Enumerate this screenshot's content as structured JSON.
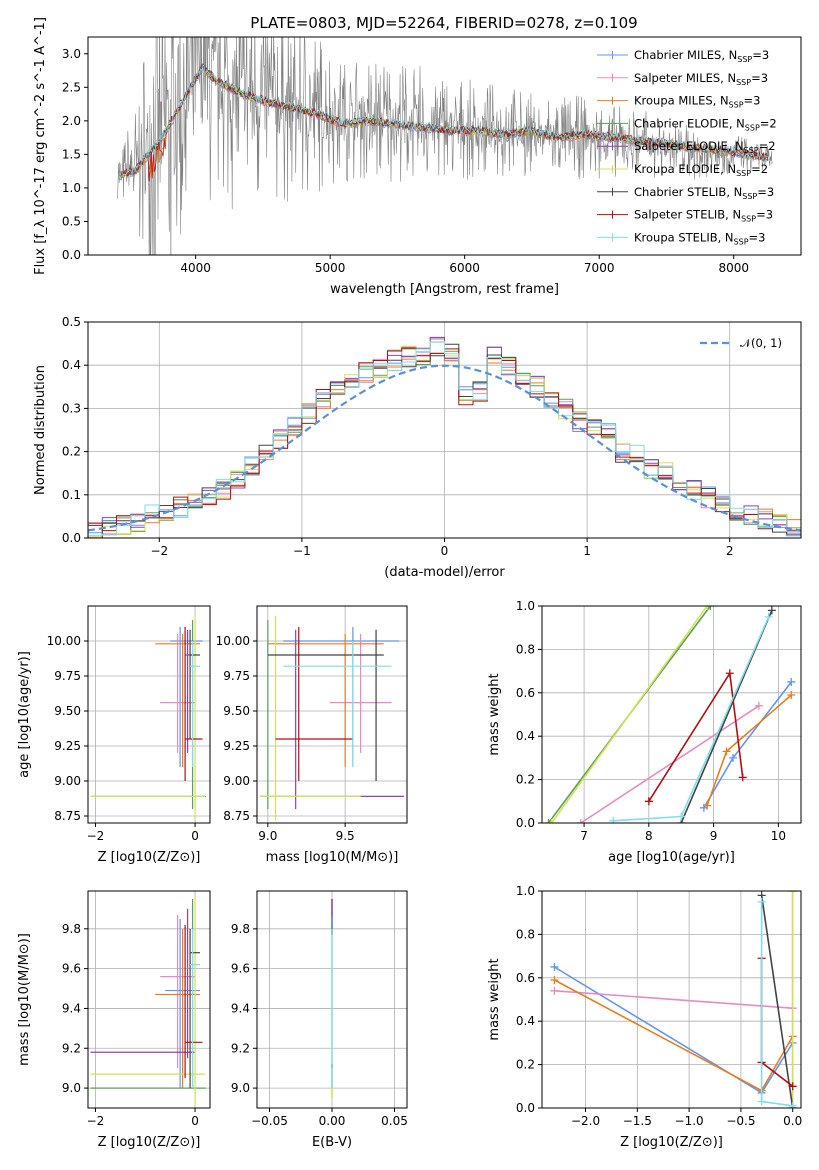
{
  "title": "PLATE=0803, MJD=52264, FIBERID=0278, z=0.109",
  "colors": {
    "Chabrier MILES": "#6495ed",
    "Salpeter MILES": "#e78ac3",
    "Kroupa MILES": "#e67e22",
    "Chabrier ELODIE": "#5aa05a",
    "Salpeter ELODIE": "#8e44ad",
    "Kroupa ELODIE": "#d4e157",
    "Chabrier STELIB": "#444444",
    "Salpeter STELIB": "#b01010",
    "Kroupa STELIB": "#80deea"
  },
  "chart_data": [
    {
      "type": "line",
      "title": "PLATE=0803, MJD=52264, FIBERID=0278, z=0.109",
      "xlabel": "wavelength [Angstrom, rest frame]",
      "ylabel": "Flux [f_λ 10^-17 erg cm^-2 s^-1 A^-1]",
      "xlim": [
        3200,
        8500
      ],
      "ylim": [
        0,
        3.25
      ],
      "xticks": [
        4000,
        5000,
        6000,
        7000,
        8000
      ],
      "yticks": [
        0.0,
        0.5,
        1.0,
        1.5,
        2.0,
        2.5,
        3.0
      ],
      "data_color": "#808080",
      "data_spectrum": {
        "x": [
          3450,
          3550,
          3650,
          3750,
          3850,
          3950,
          4050,
          4150,
          4250,
          4350,
          4500,
          4700,
          4900,
          5100,
          5300,
          5500,
          5700,
          5900,
          6100,
          6300,
          6500,
          6700,
          6900,
          7100,
          7300,
          7500,
          7700,
          7900,
          8100,
          8250
        ],
        "y": [
          1.2,
          1.3,
          1.6,
          1.9,
          2.1,
          2.4,
          2.8,
          2.6,
          2.5,
          2.4,
          2.3,
          2.2,
          2.1,
          2.0,
          2.05,
          2.0,
          1.95,
          1.9,
          1.85,
          1.85,
          1.8,
          1.75,
          1.75,
          1.7,
          1.65,
          1.6,
          1.55,
          1.55,
          1.5,
          1.45
        ],
        "scatter": [
          0.2,
          0.6,
          1.2,
          1.5,
          1.6,
          1.4,
          1.2,
          1.1,
          1.0,
          1.0,
          0.9,
          0.8,
          0.7,
          0.5,
          0.55,
          0.5,
          0.5,
          0.45,
          0.4,
          0.4,
          0.35,
          0.35,
          0.35,
          0.3,
          0.3,
          0.25,
          0.25,
          0.2,
          0.15,
          0.1
        ]
      },
      "model": {
        "x": [
          3450,
          3550,
          3650,
          3750,
          3850,
          3950,
          4050,
          4150,
          4250,
          4350,
          4500,
          4700,
          4900,
          5100,
          5300,
          5500,
          5700,
          5900,
          6100,
          6300,
          6500,
          6700,
          6900,
          7100,
          7300,
          7500,
          7700,
          7900,
          8100,
          8250
        ],
        "y": [
          1.2,
          1.25,
          1.5,
          1.75,
          2.1,
          2.45,
          2.8,
          2.6,
          2.5,
          2.4,
          2.3,
          2.2,
          2.1,
          1.95,
          2.0,
          1.95,
          1.9,
          1.85,
          1.85,
          1.8,
          1.85,
          1.75,
          1.8,
          1.75,
          1.7,
          1.65,
          1.6,
          1.55,
          1.5,
          1.45
        ]
      },
      "legend_loc": "upper right",
      "series": [
        {
          "name": "Chabrier MILES, N_SSP=3",
          "color": "#6495ed"
        },
        {
          "name": "Salpeter MILES, N_SSP=3",
          "color": "#e78ac3"
        },
        {
          "name": "Kroupa MILES, N_SSP=3",
          "color": "#e67e22"
        },
        {
          "name": "Chabrier ELODIE, N_SSP=2",
          "color": "#5aa05a"
        },
        {
          "name": "Salpeter ELODIE, N_SSP=2",
          "color": "#8e44ad"
        },
        {
          "name": "Kroupa ELODIE, N_SSP=2",
          "color": "#d4e157"
        },
        {
          "name": "Chabrier STELIB, N_SSP=3",
          "color": "#444444"
        },
        {
          "name": "Salpeter STELIB, N_SSP=3",
          "color": "#b01010"
        },
        {
          "name": "Kroupa STELIB, N_SSP=3",
          "color": "#80deea"
        }
      ]
    },
    {
      "type": "line",
      "xlabel": "(data-model)/error",
      "ylabel": "Normed distribution",
      "xlim": [
        -2.5,
        2.5
      ],
      "ylim": [
        0,
        0.5
      ],
      "xticks": [
        -2,
        -1,
        0,
        1,
        2
      ],
      "yticks": [
        0.0,
        0.1,
        0.2,
        0.3,
        0.4,
        0.5
      ],
      "grid": true,
      "legend": "𝒩(0, 1)",
      "legend_loc": "upper right",
      "gaussian_color": "#5b8fd6",
      "bin_edges": [
        -2.5,
        -2.4,
        -2.3,
        -2.2,
        -2.1,
        -2.0,
        -1.9,
        -1.8,
        -1.7,
        -1.6,
        -1.5,
        -1.4,
        -1.3,
        -1.2,
        -1.1,
        -1.0,
        -0.9,
        -0.8,
        -0.7,
        -0.6,
        -0.5,
        -0.4,
        -0.3,
        -0.2,
        -0.1,
        0.0,
        0.1,
        0.2,
        0.3,
        0.4,
        0.5,
        0.6,
        0.7,
        0.8,
        0.9,
        1.0,
        1.1,
        1.2,
        1.3,
        1.4,
        1.5,
        1.6,
        1.7,
        1.8,
        1.9,
        2.0,
        2.1,
        2.2,
        2.3,
        2.4,
        2.5
      ],
      "hist_base": [
        0.02,
        0.025,
        0.03,
        0.04,
        0.055,
        0.06,
        0.07,
        0.085,
        0.1,
        0.115,
        0.14,
        0.165,
        0.2,
        0.23,
        0.26,
        0.29,
        0.32,
        0.345,
        0.37,
        0.385,
        0.395,
        0.41,
        0.42,
        0.425,
        0.44,
        0.43,
        0.33,
        0.34,
        0.42,
        0.4,
        0.38,
        0.35,
        0.32,
        0.3,
        0.27,
        0.26,
        0.24,
        0.2,
        0.19,
        0.16,
        0.15,
        0.13,
        0.11,
        0.095,
        0.08,
        0.065,
        0.055,
        0.045,
        0.035,
        0.025
      ]
    },
    {
      "type": "scatter",
      "xlabel": "Z [log10(Z/Z⊙)]",
      "ylabel": "age  [log10(age/yr)]",
      "xlim": [
        -2.15,
        0.3
      ],
      "ylim": [
        8.7,
        10.25
      ],
      "xticks": [
        -2,
        0
      ],
      "yticks": [
        8.75,
        9.0,
        9.25,
        9.5,
        9.75,
        10.0
      ]
    },
    {
      "type": "scatter",
      "xlabel": "mass [log10(M/M⊙)]",
      "xlim": [
        8.93,
        9.9
      ],
      "ylim": [
        8.7,
        10.25
      ],
      "xticks": [
        9.0,
        9.5
      ],
      "yticks": [
        8.75,
        9.0,
        9.25,
        9.5,
        9.75,
        10.0
      ]
    },
    {
      "type": "line",
      "xlabel": "age  [log10(age/yr)]",
      "ylabel": "mass weight",
      "xlim": [
        6.35,
        10.35
      ],
      "ylim": [
        0,
        1
      ],
      "xticks": [
        7,
        8,
        9,
        10
      ],
      "yticks": [
        0.0,
        0.2,
        0.4,
        0.6,
        0.8,
        1.0
      ],
      "series": [
        {
          "name": "Chabrier MILES",
          "x": [
            8.85,
            9.3,
            10.2
          ],
          "y": [
            0.07,
            0.3,
            0.65
          ]
        },
        {
          "name": "Salpeter MILES",
          "x": [
            6.95,
            9.7
          ],
          "y": [
            0.0,
            0.54
          ]
        },
        {
          "name": "Kroupa MILES",
          "x": [
            8.9,
            9.2,
            10.2
          ],
          "y": [
            0.08,
            0.33,
            0.59
          ]
        },
        {
          "name": "Chabrier ELODIE",
          "x": [
            6.45,
            8.95
          ],
          "y": [
            0.0,
            1.0
          ]
        },
        {
          "name": "Kroupa ELODIE",
          "x": [
            6.5,
            8.9
          ],
          "y": [
            0.0,
            1.0
          ]
        },
        {
          "name": "Chabrier STELIB",
          "x": [
            8.5,
            9.9
          ],
          "y": [
            0.0,
            0.98
          ]
        },
        {
          "name": "Salpeter STELIB",
          "x": [
            8.0,
            9.25,
            9.45
          ],
          "y": [
            0.1,
            0.69,
            0.21
          ]
        },
        {
          "name": "Kroupa STELIB",
          "x": [
            7.45,
            8.5,
            9.85
          ],
          "y": [
            0.01,
            0.03,
            0.95
          ]
        }
      ]
    },
    {
      "type": "scatter",
      "xlabel": "Z [log10(Z/Z⊙)]",
      "ylabel": "mass [log10(M/M⊙)]",
      "xlim": [
        -2.15,
        0.3
      ],
      "ylim": [
        8.9,
        9.99
      ],
      "xticks": [
        -2,
        0
      ],
      "yticks": [
        9.0,
        9.2,
        9.4,
        9.6,
        9.8
      ]
    },
    {
      "type": "scatter",
      "xlabel": "E(B-V)",
      "xlim": [
        -0.06,
        0.06
      ],
      "ylim": [
        8.9,
        9.99
      ],
      "xticks": [
        -0.05,
        0.0,
        0.05
      ],
      "yticks": [
        9.0,
        9.2,
        9.4,
        9.6,
        9.8
      ]
    },
    {
      "type": "line",
      "xlabel": "Z [log10(Z/Z⊙)]",
      "ylabel": "mass weight",
      "xlim": [
        -2.42,
        0.08
      ],
      "ylim": [
        0,
        1
      ],
      "xticks": [
        -2.0,
        -1.5,
        -1.0,
        -0.5,
        0.0
      ],
      "yticks": [
        0.0,
        0.2,
        0.4,
        0.6,
        0.8,
        1.0
      ],
      "series": [
        {
          "name": "Chabrier MILES",
          "x": [
            -2.3,
            -0.3,
            0.0
          ],
          "y": [
            0.65,
            0.07,
            0.3
          ]
        },
        {
          "name": "Salpeter MILES",
          "x": [
            -2.3,
            0.0
          ],
          "y": [
            0.54,
            0.46
          ]
        },
        {
          "name": "Kroupa MILES",
          "x": [
            -2.3,
            -0.3,
            0.0
          ],
          "y": [
            0.59,
            0.08,
            0.33
          ]
        },
        {
          "name": "Chabrier ELODIE",
          "x": [
            0.0,
            0.0
          ],
          "y": [
            0.0,
            1.0
          ]
        },
        {
          "name": "Kroupa ELODIE",
          "x": [
            0.0,
            0.0
          ],
          "y": [
            0.0,
            1.0
          ]
        },
        {
          "name": "Chabrier STELIB",
          "x": [
            -0.3,
            0.0
          ],
          "y": [
            0.98,
            0.0
          ]
        },
        {
          "name": "Salpeter STELIB",
          "x": [
            -0.3,
            -0.3,
            0.0
          ],
          "y": [
            0.69,
            0.21,
            0.1
          ]
        },
        {
          "name": "Kroupa STELIB",
          "x": [
            -0.3,
            -0.3,
            0.0
          ],
          "y": [
            0.95,
            0.03,
            0.01
          ]
        }
      ]
    }
  ]
}
